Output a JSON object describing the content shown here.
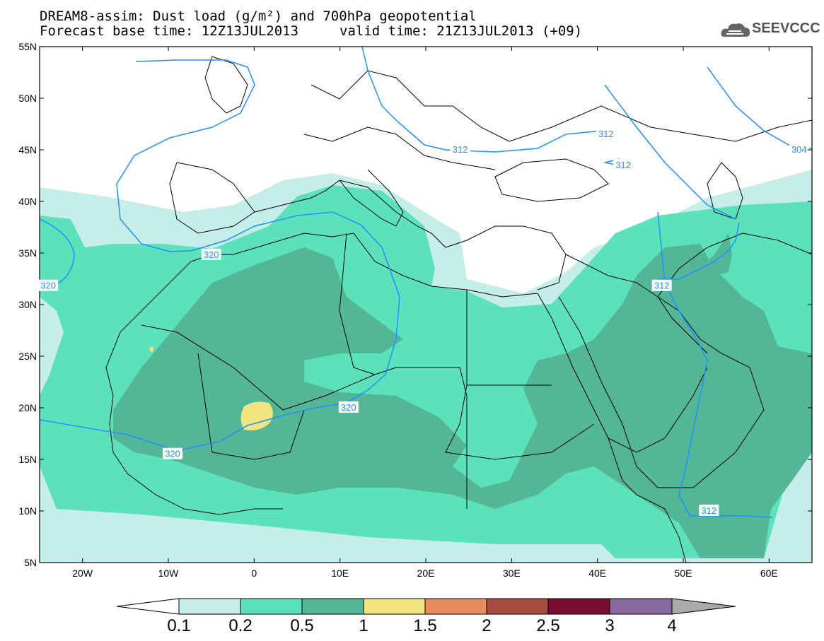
{
  "header": {
    "title_line1": "DREAM8-assim: Dust load (g/m²) and 700hPa geopotential",
    "title_line2": "Forecast base time: 12Z13JUL2013",
    "valid_time": "valid time: 21Z13JUL2013 (+09)",
    "logo_text": "SEEVCCC"
  },
  "map": {
    "lon_ticks": [
      "20W",
      "10W",
      "0",
      "10E",
      "20E",
      "30E",
      "40E",
      "50E",
      "60E"
    ],
    "lat_ticks": [
      "55N",
      "50N",
      "45N",
      "40N",
      "35N",
      "30N",
      "25N",
      "20N",
      "15N",
      "10N",
      "5N"
    ],
    "contour_labels": [
      {
        "text": "320",
        "lon": -9.5,
        "lat": 15.5
      },
      {
        "text": "320",
        "lon": 11,
        "lat": 20
      },
      {
        "text": "320",
        "lon": -5,
        "lat": 34.8
      },
      {
        "text": "320",
        "lon": -24,
        "lat": 31.8
      },
      {
        "text": "312",
        "lon": 24,
        "lat": 45
      },
      {
        "text": "312",
        "lon": 41,
        "lat": 46.5
      },
      {
        "text": "312",
        "lon": 43,
        "lat": 43.5
      },
      {
        "text": "312",
        "lon": 47.5,
        "lat": 31.8
      },
      {
        "text": "312",
        "lon": 53,
        "lat": 10
      },
      {
        "text": "304",
        "lon": 63.5,
        "lat": 45
      }
    ],
    "colors": {
      "c01": "#c5eee9",
      "c02": "#5be2bb",
      "c05": "#52b697",
      "c1": "#f2e580",
      "c15": "#e88c5e",
      "c2": "#a54b40",
      "c25": "#790d30",
      "c3": "#87699d",
      "c4": "#aaaaaa",
      "contour": "#1e90ff"
    }
  },
  "colorbar": {
    "labels": [
      "0.1",
      "0.2",
      "0.5",
      "1",
      "1.5",
      "2",
      "2.5",
      "3",
      "4"
    ]
  }
}
